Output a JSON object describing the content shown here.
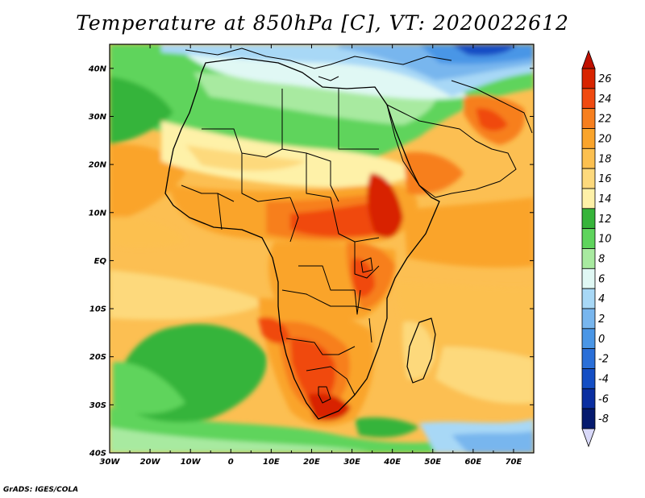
{
  "title": "Temperature at 850hPa [C], VT: 2020022612",
  "credit": "GrADS: IGES/COLA",
  "map": {
    "region": "Africa",
    "variable": "Temperature at 850hPa",
    "units": "C",
    "valid_time": "2020022612",
    "lon_range": [
      -30,
      75
    ],
    "lat_range": [
      -40,
      45
    ],
    "lon_ticks": [
      "30W",
      "20W",
      "10W",
      "0",
      "10E",
      "20E",
      "30E",
      "40E",
      "50E",
      "60E",
      "70E"
    ],
    "lat_ticks": [
      "40N",
      "30N",
      "20N",
      "10N",
      "EQ",
      "10S",
      "20S",
      "30S",
      "40S"
    ]
  },
  "colorbar": {
    "labels": [
      "26",
      "24",
      "22",
      "20",
      "18",
      "16",
      "14",
      "12",
      "10",
      "8",
      "6",
      "4",
      "2",
      "0",
      "-2",
      "-4",
      "-6",
      "-8"
    ],
    "colors": [
      "#d82400",
      "#f04a10",
      "#f77f1e",
      "#faa42b",
      "#fcc050",
      "#fdd97c",
      "#fef1a8",
      "#36b43a",
      "#5ed45c",
      "#a8eaa0",
      "#e0f8f4",
      "#a8d8f6",
      "#78b6ee",
      "#4a96e6",
      "#2a6fd8",
      "#144ec4",
      "#0a2ea0",
      "#051a6e"
    ]
  }
}
